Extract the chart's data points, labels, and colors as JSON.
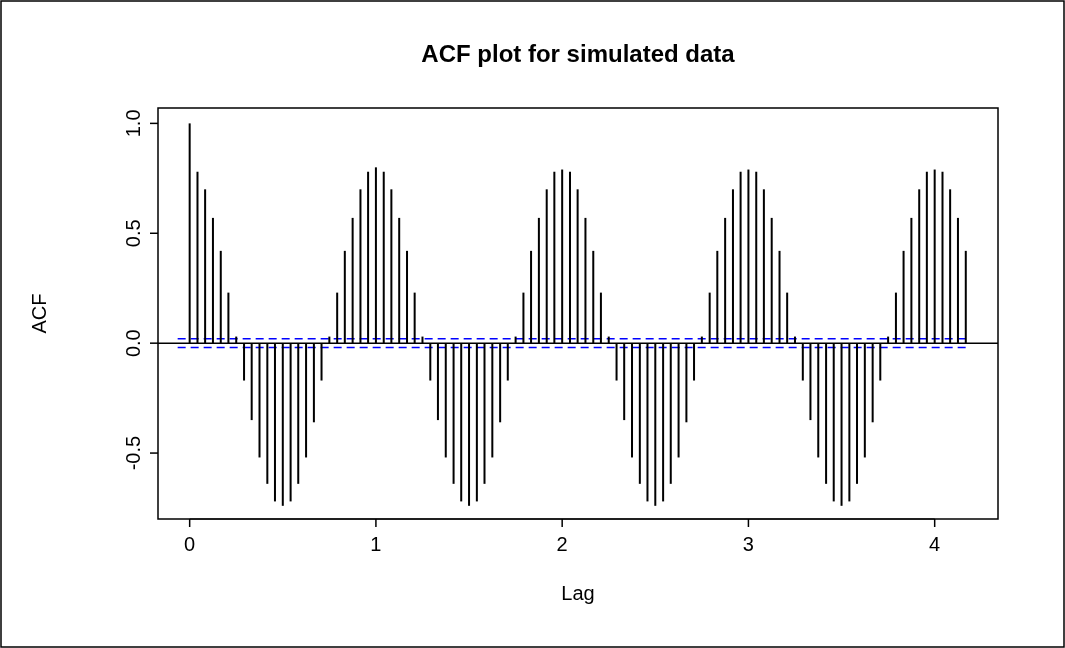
{
  "chart_data": {
    "type": "bar",
    "title": "ACF plot for simulated data",
    "xlabel": "Lag",
    "ylabel": "ACF",
    "x": [
      0,
      0.042,
      0.083,
      0.125,
      0.167,
      0.208,
      0.25,
      0.292,
      0.333,
      0.375,
      0.417,
      0.458,
      0.5,
      0.542,
      0.583,
      0.625,
      0.667,
      0.708,
      0.75,
      0.792,
      0.833,
      0.875,
      0.917,
      0.958,
      1,
      1.042,
      1.083,
      1.125,
      1.167,
      1.208,
      1.25,
      1.292,
      1.333,
      1.375,
      1.417,
      1.458,
      1.5,
      1.542,
      1.583,
      1.625,
      1.667,
      1.708,
      1.75,
      1.792,
      1.833,
      1.875,
      1.917,
      1.958,
      2,
      2.042,
      2.083,
      2.125,
      2.167,
      2.208,
      2.25,
      2.292,
      2.333,
      2.375,
      2.417,
      2.458,
      2.5,
      2.542,
      2.583,
      2.625,
      2.667,
      2.708,
      2.75,
      2.792,
      2.833,
      2.875,
      2.917,
      2.958,
      3,
      3.042,
      3.083,
      3.125,
      3.167,
      3.208,
      3.25,
      3.292,
      3.333,
      3.375,
      3.417,
      3.458,
      3.5,
      3.542,
      3.583,
      3.625,
      3.667,
      3.708,
      3.75,
      3.792,
      3.833,
      3.875,
      3.917,
      3.958,
      4,
      4.042,
      4.083,
      4.125,
      4.167
    ],
    "values": [
      1.0,
      0.78,
      0.7,
      0.57,
      0.42,
      0.23,
      0.03,
      -0.17,
      -0.35,
      -0.52,
      -0.64,
      -0.72,
      -0.74,
      -0.72,
      -0.64,
      -0.52,
      -0.36,
      -0.17,
      0.03,
      0.23,
      0.42,
      0.57,
      0.7,
      0.78,
      0.8,
      0.78,
      0.7,
      0.57,
      0.42,
      0.23,
      0.03,
      -0.17,
      -0.35,
      -0.52,
      -0.64,
      -0.72,
      -0.74,
      -0.72,
      -0.64,
      -0.52,
      -0.36,
      -0.17,
      0.03,
      0.23,
      0.42,
      0.57,
      0.7,
      0.78,
      0.79,
      0.78,
      0.7,
      0.57,
      0.42,
      0.23,
      0.03,
      -0.17,
      -0.35,
      -0.52,
      -0.64,
      -0.72,
      -0.74,
      -0.72,
      -0.64,
      -0.52,
      -0.36,
      -0.17,
      0.03,
      0.23,
      0.42,
      0.57,
      0.7,
      0.78,
      0.79,
      0.78,
      0.7,
      0.57,
      0.42,
      0.23,
      0.03,
      -0.17,
      -0.35,
      -0.52,
      -0.64,
      -0.72,
      -0.74,
      -0.72,
      -0.64,
      -0.52,
      -0.36,
      -0.17,
      0.03,
      0.23,
      0.42,
      0.57,
      0.7,
      0.78,
      0.79,
      0.78,
      0.7,
      0.57,
      0.42
    ],
    "color": "#000000",
    "xlim": [
      -0.17,
      4.34
    ],
    "ylim": [
      -0.8,
      1.07
    ],
    "xticks": [
      0,
      1,
      2,
      3,
      4
    ],
    "yticks": [
      -0.5,
      {
        "value": 0,
        "label": "0.0"
      },
      0.5,
      {
        "value": 1,
        "label": "1.0"
      }
    ],
    "ref_lines": [
      {
        "axis": "y",
        "value": 0,
        "color": "#000000",
        "line_style": "solid"
      },
      {
        "axis": "y",
        "value": 0.02,
        "color": "#0000ff",
        "line_style": "dashed"
      },
      {
        "axis": "y",
        "value": -0.02,
        "color": "#0000ff",
        "line_style": "dashed"
      }
    ],
    "grid": false
  }
}
